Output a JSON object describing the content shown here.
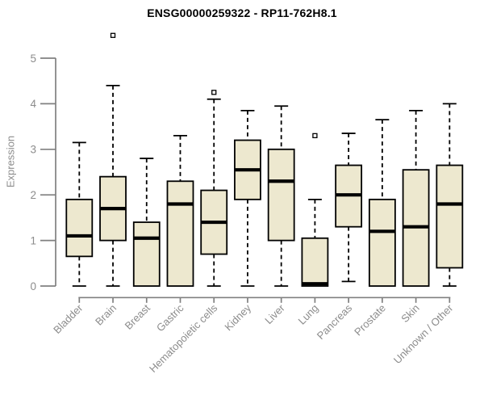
{
  "chart_data": {
    "type": "boxplot",
    "title": "ENSG00000259322 - RP11-762H8.1",
    "ylabel": "Expression",
    "xlabel": "",
    "ylim": [
      0,
      5.6
    ],
    "yticks": [
      0,
      1,
      2,
      3,
      4,
      5
    ],
    "grid": false,
    "legend": "none",
    "categories": [
      "Bladder",
      "Brain",
      "Breast",
      "Gastric",
      "Hematopoietic cells",
      "Kidney",
      "Liver",
      "Lung",
      "Pancreas",
      "Prostate",
      "Skin",
      "Unknown / Other"
    ],
    "boxes": [
      {
        "category": "Bladder",
        "whisker_low": 0,
        "q1": 0.65,
        "median": 1.1,
        "q3": 1.9,
        "whisker_high": 3.15,
        "outliers": []
      },
      {
        "category": "Brain",
        "whisker_low": 0,
        "q1": 1.0,
        "median": 1.7,
        "q3": 2.4,
        "whisker_high": 4.4,
        "outliers": [
          5.5
        ]
      },
      {
        "category": "Breast",
        "whisker_low": 0,
        "q1": 0,
        "median": 1.05,
        "q3": 1.4,
        "whisker_high": 2.8,
        "outliers": []
      },
      {
        "category": "Gastric",
        "whisker_low": 0,
        "q1": 0,
        "median": 1.8,
        "q3": 2.3,
        "whisker_high": 3.3,
        "outliers": []
      },
      {
        "category": "Hematopoietic cells",
        "whisker_low": 0,
        "q1": 0.7,
        "median": 1.4,
        "q3": 2.1,
        "whisker_high": 4.1,
        "outliers": [
          4.25
        ]
      },
      {
        "category": "Kidney",
        "whisker_low": 0,
        "q1": 1.9,
        "median": 2.55,
        "q3": 3.2,
        "whisker_high": 3.85,
        "outliers": []
      },
      {
        "category": "Liver",
        "whisker_low": 0,
        "q1": 1.0,
        "median": 2.3,
        "q3": 3.0,
        "whisker_high": 3.95,
        "outliers": []
      },
      {
        "category": "Lung",
        "whisker_low": 0,
        "q1": 0,
        "median": 0.05,
        "q3": 1.05,
        "whisker_high": 1.9,
        "outliers": [
          3.3
        ]
      },
      {
        "category": "Pancreas",
        "whisker_low": 0.1,
        "q1": 1.3,
        "median": 2.0,
        "q3": 2.65,
        "whisker_high": 3.35,
        "outliers": []
      },
      {
        "category": "Prostate",
        "whisker_low": 0,
        "q1": 0,
        "median": 1.2,
        "q3": 1.9,
        "whisker_high": 3.65,
        "outliers": []
      },
      {
        "category": "Skin",
        "whisker_low": 0,
        "q1": 0,
        "median": 1.3,
        "q3": 2.55,
        "whisker_high": 3.85,
        "outliers": []
      },
      {
        "category": "Unknown / Other",
        "whisker_low": 0,
        "q1": 0.4,
        "median": 1.8,
        "q3": 2.65,
        "whisker_high": 4.0,
        "outliers": []
      }
    ],
    "colors": {
      "box_fill": "#EDE8CF",
      "box_border": "#000000",
      "median": "#000000",
      "whisker": "#000000",
      "axis": "#808080",
      "tick_label": "#8C8C8C",
      "title": "#000000",
      "background": "#FFFFFF"
    }
  }
}
